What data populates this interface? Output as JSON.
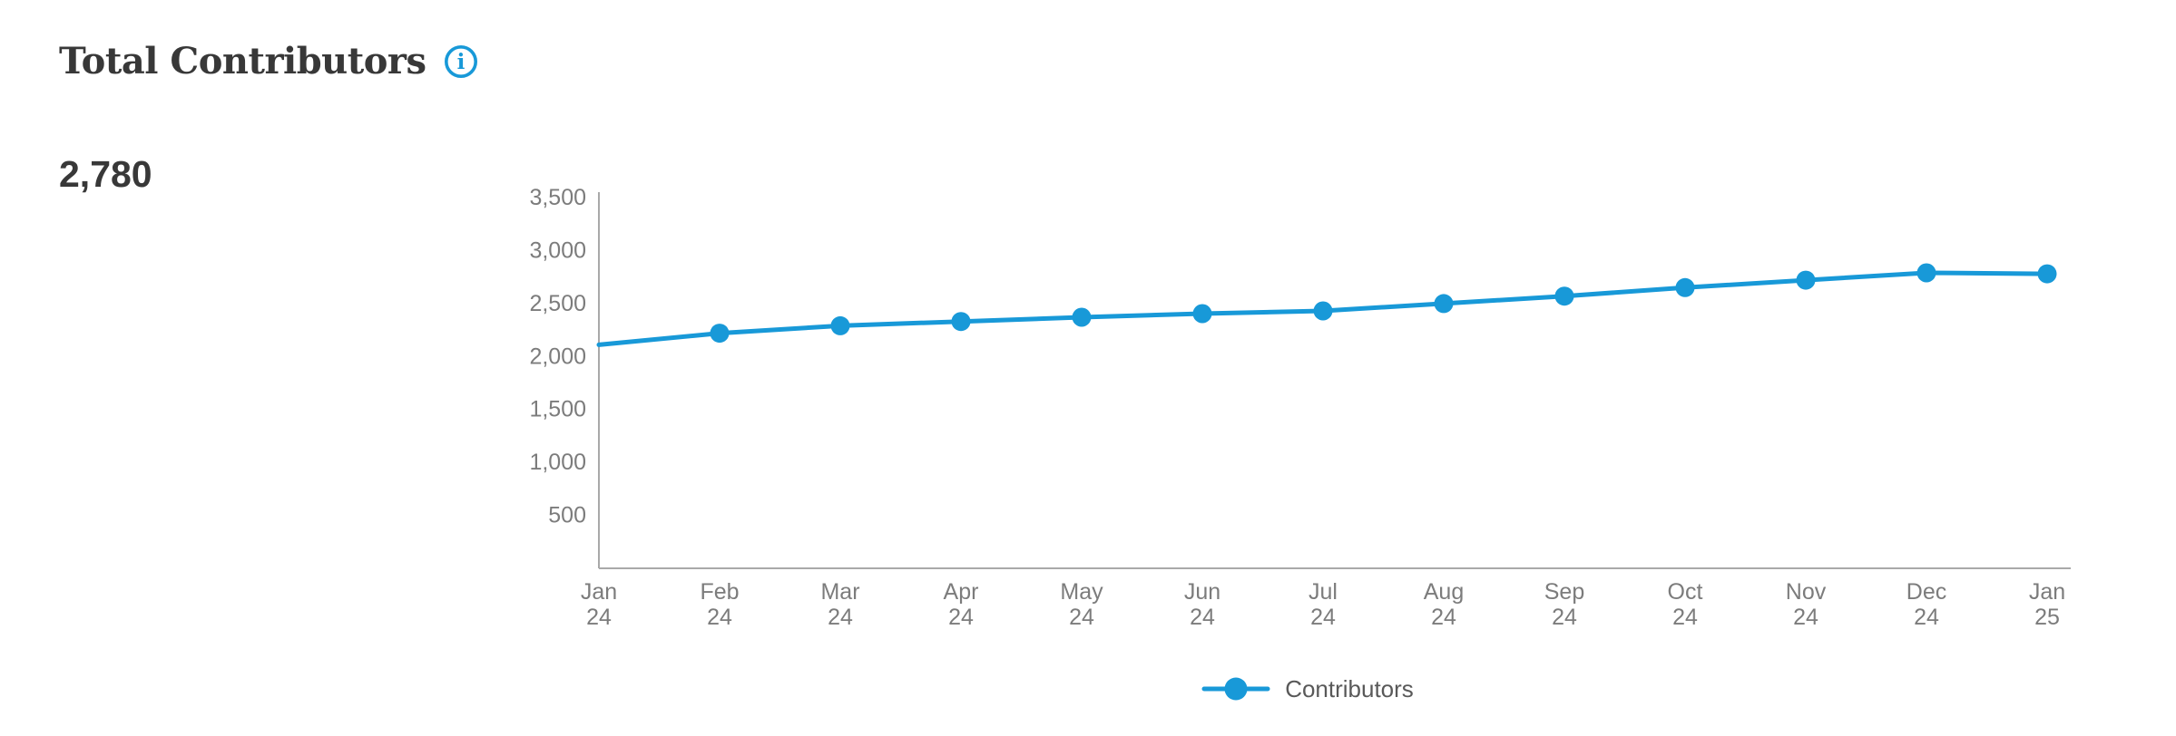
{
  "header": {
    "title": "Total Contributors",
    "info_icon": "info-icon",
    "info_glyph": "i"
  },
  "metric": {
    "value": "2,780"
  },
  "chart_data": {
    "type": "line",
    "title": "Total Contributors",
    "x_labels": [
      [
        "Jan",
        "24"
      ],
      [
        "Feb",
        "24"
      ],
      [
        "Mar",
        "24"
      ],
      [
        "Apr",
        "24"
      ],
      [
        "May",
        "24"
      ],
      [
        "Jun",
        "24"
      ],
      [
        "Jul",
        "24"
      ],
      [
        "Aug",
        "24"
      ],
      [
        "Sep",
        "24"
      ],
      [
        "Oct",
        "24"
      ],
      [
        "Nov",
        "24"
      ],
      [
        "Dec",
        "24"
      ],
      [
        "Jan",
        "25"
      ]
    ],
    "series": [
      {
        "name": "Contributors",
        "values": [
          2110,
          2220,
          2290,
          2330,
          2370,
          2405,
          2430,
          2500,
          2570,
          2650,
          2720,
          2790,
          2780
        ]
      }
    ],
    "ylim": [
      0,
      3500
    ],
    "yticks": [
      500,
      1000,
      1500,
      2000,
      2500,
      3000,
      3500
    ],
    "grid": false,
    "legend_position": "bottom",
    "first_point_marker": false,
    "xlabel": "",
    "ylabel": ""
  },
  "colors": {
    "accent": "#1899D8",
    "title_text": "#383838",
    "axis_text": "#7C7C7C",
    "legend_text": "#595959",
    "axis_line": "#A9A9A9",
    "background": "#FFFFFF"
  }
}
